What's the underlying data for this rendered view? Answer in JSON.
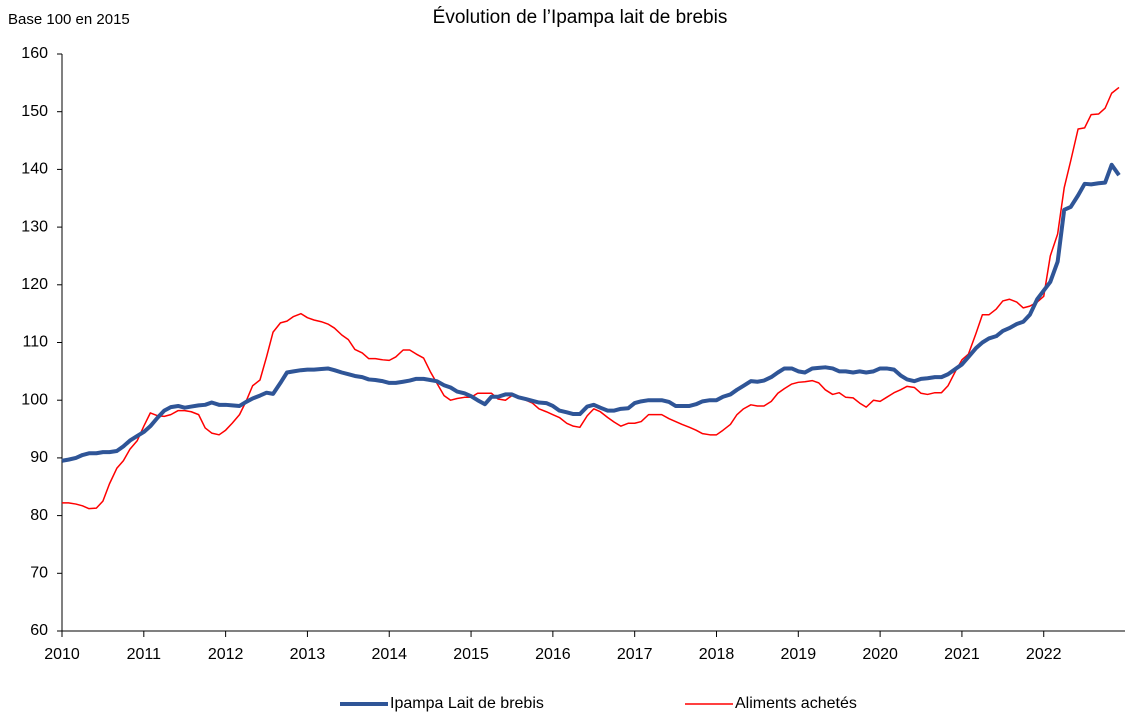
{
  "chart_data": {
    "type": "line",
    "title": "Évolution de l’Ipampa lait de brebis",
    "y_label": "Base 100 en 2015",
    "x": [
      2010,
      2010.08,
      2010.17,
      2010.25,
      2010.33,
      2010.42,
      2010.5,
      2010.58,
      2010.67,
      2010.75,
      2010.83,
      2010.92,
      2011,
      2011.08,
      2011.17,
      2011.25,
      2011.33,
      2011.42,
      2011.5,
      2011.58,
      2011.67,
      2011.75,
      2011.83,
      2011.92,
      2012,
      2012.08,
      2012.17,
      2012.25,
      2012.33,
      2012.42,
      2012.5,
      2012.58,
      2012.67,
      2012.75,
      2012.83,
      2012.92,
      2013,
      2013.08,
      2013.17,
      2013.25,
      2013.33,
      2013.42,
      2013.5,
      2013.58,
      2013.67,
      2013.75,
      2013.83,
      2013.92,
      2014,
      2014.08,
      2014.17,
      2014.25,
      2014.33,
      2014.42,
      2014.5,
      2014.58,
      2014.67,
      2014.75,
      2014.83,
      2014.92,
      2015,
      2015.08,
      2015.17,
      2015.25,
      2015.33,
      2015.42,
      2015.5,
      2015.58,
      2015.67,
      2015.75,
      2015.83,
      2015.92,
      2016,
      2016.08,
      2016.17,
      2016.25,
      2016.33,
      2016.42,
      2016.5,
      2016.58,
      2016.67,
      2016.75,
      2016.83,
      2016.92,
      2017,
      2017.08,
      2017.17,
      2017.25,
      2017.33,
      2017.42,
      2017.5,
      2017.58,
      2017.67,
      2017.75,
      2017.83,
      2017.92,
      2018,
      2018.08,
      2018.17,
      2018.25,
      2018.33,
      2018.42,
      2018.5,
      2018.58,
      2018.67,
      2018.75,
      2018.83,
      2018.92,
      2019,
      2019.08,
      2019.17,
      2019.25,
      2019.33,
      2019.42,
      2019.5,
      2019.58,
      2019.67,
      2019.75,
      2019.83,
      2019.92,
      2020,
      2020.08,
      2020.17,
      2020.25,
      2020.33,
      2020.42,
      2020.5,
      2020.58,
      2020.67,
      2020.75,
      2020.83,
      2020.92,
      2021,
      2021.08,
      2021.17,
      2021.25,
      2021.33,
      2021.42,
      2021.5,
      2021.58,
      2021.67,
      2021.75,
      2021.83,
      2021.92,
      2022,
      2022.08,
      2022.17,
      2022.25,
      2022.33,
      2022.42,
      2022.5,
      2022.58,
      2022.67,
      2022.75,
      2022.83,
      2022.92
    ],
    "series": [
      {
        "name": "Ipampa Lait de brebis",
        "color": "#2f5597",
        "width": 4,
        "values": [
          89.5,
          89.7,
          90,
          90.5,
          90.8,
          90.8,
          91,
          91,
          91.2,
          92,
          93,
          93.8,
          94.5,
          95.5,
          97,
          98.2,
          98.8,
          99,
          98.7,
          98.9,
          99.1,
          99.2,
          99.6,
          99.2,
          99.2,
          99.1,
          99,
          99.7,
          100.3,
          100.8,
          101.3,
          101.1,
          103,
          104.8,
          105,
          105.2,
          105.3,
          105.3,
          105.4,
          105.5,
          105.2,
          104.8,
          104.5,
          104.2,
          104,
          103.6,
          103.5,
          103.3,
          103,
          103,
          103.2,
          103.4,
          103.7,
          103.7,
          103.5,
          103.3,
          102.6,
          102.2,
          101.5,
          101.2,
          100.7,
          100,
          99.3,
          100.6,
          100.6,
          101,
          101,
          100.5,
          100.2,
          99.9,
          99.6,
          99.5,
          99,
          98.2,
          97.9,
          97.6,
          97.6,
          98.9,
          99.2,
          98.7,
          98.2,
          98.2,
          98.5,
          98.6,
          99.5,
          99.8,
          100,
          100,
          100,
          99.7,
          99,
          99,
          99,
          99.3,
          99.8,
          100,
          100,
          100.6,
          101,
          101.8,
          102.5,
          103.3,
          103.2,
          103.4,
          104,
          104.8,
          105.5,
          105.5,
          105,
          104.8,
          105.5,
          105.6,
          105.7,
          105.5,
          105,
          105,
          104.8,
          105,
          104.8,
          105,
          105.5,
          105.5,
          105.3,
          104.3,
          103.6,
          103.3,
          103.7,
          103.8,
          104,
          104,
          104.5,
          105.4,
          106.2,
          107.5,
          109,
          110,
          110.7,
          111.1,
          112,
          112.5,
          113.2,
          113.6,
          114.8,
          117.5,
          119,
          120.5,
          124,
          133,
          133.5,
          135.5,
          137.5,
          137.4,
          137.6,
          137.7,
          140.8,
          139
        ]
      },
      {
        "name": "Aliments achetés",
        "color": "#ff0000",
        "width": 1.5,
        "values": [
          82.2,
          82.2,
          82,
          81.7,
          81.2,
          81.3,
          82.5,
          85.5,
          88.2,
          89.5,
          91.5,
          93,
          95.5,
          97.8,
          97.3,
          97.2,
          97.5,
          98.2,
          98.2,
          98,
          97.5,
          95.2,
          94.3,
          94,
          94.8,
          96,
          97.5,
          99.8,
          102.5,
          103.5,
          107.5,
          111.8,
          113.4,
          113.7,
          114.5,
          115,
          114.3,
          113.9,
          113.6,
          113.2,
          112.5,
          111.3,
          110.5,
          108.8,
          108.2,
          107.2,
          107.2,
          107,
          106.9,
          107.5,
          108.7,
          108.7,
          108,
          107.3,
          105,
          103,
          100.8,
          100,
          100.3,
          100.5,
          100.5,
          101.2,
          101.2,
          101.2,
          100.2,
          100,
          100.8,
          100.5,
          100,
          99.5,
          98.5,
          98,
          97.5,
          97,
          96,
          95.5,
          95.3,
          97.3,
          98.5,
          98,
          97,
          96.2,
          95.5,
          96,
          96,
          96.3,
          97.5,
          97.5,
          97.5,
          96.8,
          96.3,
          95.8,
          95.3,
          94.8,
          94.2,
          94,
          94,
          94.8,
          95.8,
          97.5,
          98.5,
          99.2,
          99,
          99,
          99.8,
          101.2,
          102,
          102.8,
          103.1,
          103.2,
          103.4,
          103,
          101.8,
          101,
          101.3,
          100.5,
          100.4,
          99.5,
          98.8,
          100,
          99.8,
          100.5,
          101.3,
          101.8,
          102.4,
          102.2,
          101.2,
          101,
          101.3,
          101.3,
          102.5,
          105,
          107,
          108,
          111.5,
          114.8,
          114.8,
          115.8,
          117.2,
          117.5,
          117,
          116,
          116.3,
          117,
          118,
          125,
          128.8,
          136.8,
          141.5,
          147,
          147.2,
          149.5,
          149.6,
          150.6,
          153.2,
          154.2
        ]
      }
    ],
    "xlim": [
      2010,
      2022.92
    ],
    "xticks": [
      2010,
      2011,
      2012,
      2013,
      2014,
      2015,
      2016,
      2017,
      2018,
      2019,
      2020,
      2021,
      2022
    ],
    "ylim": [
      60,
      160
    ],
    "yticks": [
      60,
      70,
      80,
      90,
      100,
      110,
      120,
      130,
      140,
      150,
      160
    ],
    "grid": false,
    "legend": "bottom"
  }
}
